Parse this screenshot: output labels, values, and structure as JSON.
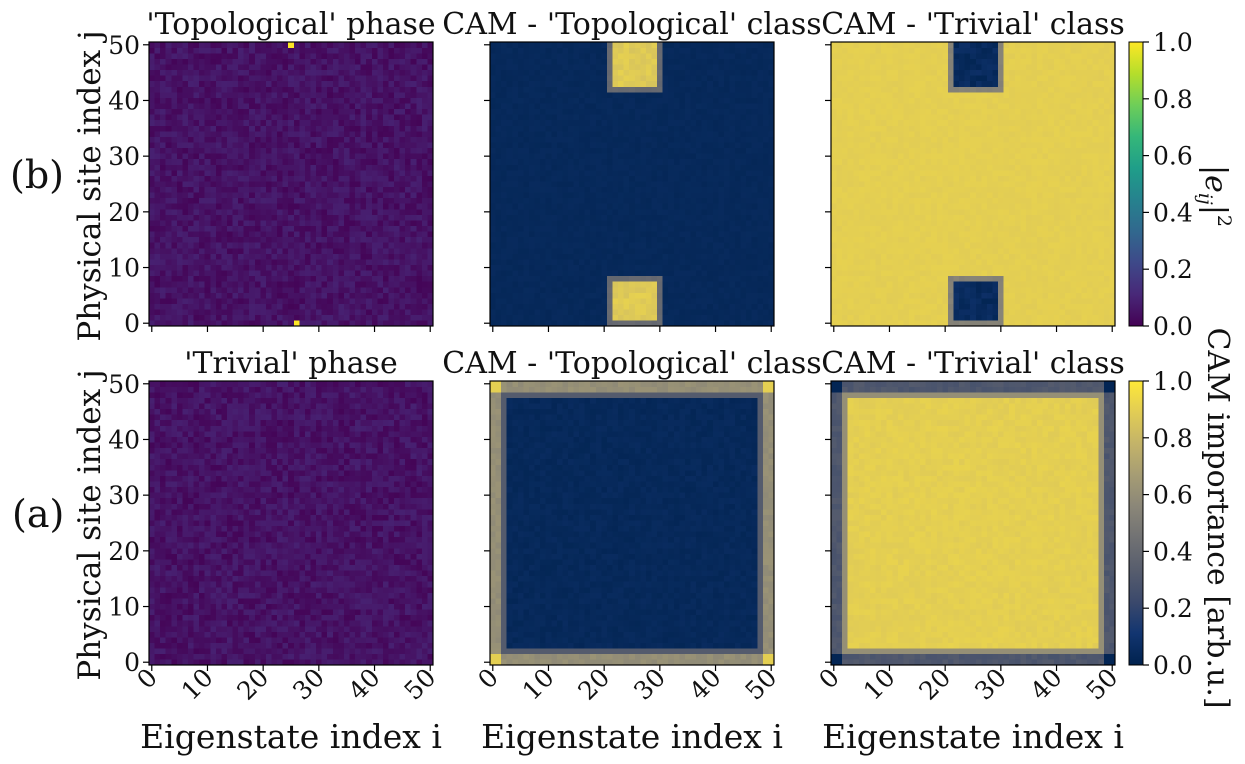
{
  "colors": {
    "viridis": [
      "#440154",
      "#482878",
      "#3e4989",
      "#31688e",
      "#26828e",
      "#1f9e89",
      "#35b779",
      "#6ece58",
      "#b5de2b",
      "#fde725"
    ],
    "cividis": [
      "#00224e",
      "#123570",
      "#3b496c",
      "#575d6d",
      "#707173",
      "#8a8678",
      "#a59c74",
      "#c3b369",
      "#e1cc55",
      "#fee838"
    ]
  },
  "row_labels": {
    "top": "(b)",
    "bottom": "(a)"
  },
  "axes_text": {
    "ylabel": "Physical site index j",
    "xlabel": "Eigenstate index i"
  },
  "colorbars": {
    "top": {
      "label": "|e_ij|²",
      "ticks": [
        "0.0",
        "0.2",
        "0.4",
        "0.6",
        "0.8",
        "1.0"
      ]
    },
    "bottom": {
      "label": "CAM importance [arb.u.]",
      "ticks": [
        "0.0",
        "0.2",
        "0.4",
        "0.6",
        "0.8",
        "1.0"
      ]
    }
  },
  "chart_data": [
    {
      "type": "heatmap",
      "title": "'Topological' phase",
      "xlabel": "",
      "ylabel": "Physical site index j",
      "x_ticks": [
        0,
        10,
        20,
        30,
        40,
        50
      ],
      "y_ticks": [
        0,
        10,
        20,
        30,
        40,
        50
      ],
      "xlim": [
        0,
        51
      ],
      "ylim": [
        0,
        51
      ],
      "colormap": "viridis",
      "vmin": 0,
      "vmax": 1,
      "background_value": 0.05,
      "background_noise": 0.04,
      "hotspots": [
        {
          "i": 25,
          "j": 50,
          "value": 1.0
        },
        {
          "i": 26,
          "j": 0,
          "value": 1.0
        }
      ]
    },
    {
      "type": "heatmap",
      "title": "CAM - 'Topological' class",
      "xlabel": "",
      "ylabel": "",
      "x_ticks": [
        0,
        10,
        20,
        30,
        40,
        50
      ],
      "y_ticks": [
        0,
        10,
        20,
        30,
        40,
        50
      ],
      "xlim": [
        0,
        51
      ],
      "ylim": [
        0,
        51
      ],
      "colormap": "cividis",
      "vmin": 0,
      "vmax": 1,
      "background_value": 0.04,
      "blobs": [
        {
          "i_range": [
            21,
            30
          ],
          "j_range": [
            42,
            51
          ],
          "value": 0.88
        },
        {
          "i_range": [
            21,
            30
          ],
          "j_range": [
            0,
            8
          ],
          "value": 0.88
        }
      ]
    },
    {
      "type": "heatmap",
      "title": "CAM - 'Trivial' class",
      "xlabel": "",
      "ylabel": "",
      "x_ticks": [
        0,
        10,
        20,
        30,
        40,
        50
      ],
      "y_ticks": [
        0,
        10,
        20,
        30,
        40,
        50
      ],
      "xlim": [
        0,
        51
      ],
      "ylim": [
        0,
        51
      ],
      "colormap": "cividis",
      "vmin": 0,
      "vmax": 1,
      "background_value": 0.9,
      "blobs": [
        {
          "i_range": [
            21,
            30
          ],
          "j_range": [
            42,
            51
          ],
          "value": 0.05
        },
        {
          "i_range": [
            21,
            30
          ],
          "j_range": [
            0,
            8
          ],
          "value": 0.05
        }
      ]
    },
    {
      "type": "heatmap",
      "title": "'Trivial' phase",
      "xlabel": "Eigenstate index i",
      "ylabel": "Physical site index j",
      "x_ticks": [
        0,
        10,
        20,
        30,
        40,
        50
      ],
      "y_ticks": [
        0,
        10,
        20,
        30,
        40,
        50
      ],
      "xlim": [
        0,
        51
      ],
      "ylim": [
        0,
        51
      ],
      "colormap": "viridis",
      "vmin": 0,
      "vmax": 1,
      "background_value": 0.05,
      "background_noise": 0.04
    },
    {
      "type": "heatmap",
      "title": "CAM - 'Topological' class",
      "xlabel": "Eigenstate index i",
      "ylabel": "",
      "x_ticks": [
        0,
        10,
        20,
        30,
        40,
        50
      ],
      "y_ticks": [
        0,
        10,
        20,
        30,
        40,
        50
      ],
      "xlim": [
        0,
        51
      ],
      "ylim": [
        0,
        51
      ],
      "colormap": "cividis",
      "vmin": 0,
      "vmax": 1,
      "interior_value": 0.04,
      "border_value": 0.6,
      "border_width": 2,
      "corner_value": 0.9
    },
    {
      "type": "heatmap",
      "title": "CAM - 'Trivial' class",
      "xlabel": "Eigenstate index i",
      "ylabel": "",
      "x_ticks": [
        0,
        10,
        20,
        30,
        40,
        50
      ],
      "y_ticks": [
        0,
        10,
        20,
        30,
        40,
        50
      ],
      "xlim": [
        0,
        51
      ],
      "ylim": [
        0,
        51
      ],
      "colormap": "cividis",
      "vmin": 0,
      "vmax": 1,
      "interior_value": 0.9,
      "border_value": 0.3,
      "border_width": 2,
      "corner_value": 0.02
    }
  ]
}
